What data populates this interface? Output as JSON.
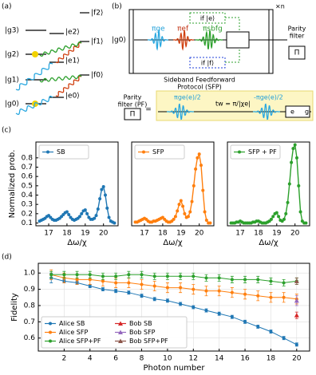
{
  "panel_labels": [
    "(a)",
    "(b)",
    "(c)",
    "(d)"
  ],
  "diagram_a": {
    "levels": [
      "|g3⟩",
      "|e2⟩",
      "|f2⟩",
      "|g2⟩",
      "|e1⟩",
      "|f1⟩",
      "|g1⟩",
      "|f0⟩",
      "|e0⟩",
      "|g0⟩"
    ]
  },
  "diagram_b": {
    "input": "|g0⟩",
    "pulses": [
      "πge",
      "πef",
      "πsbfg"
    ],
    "if_e": "if |e⟩",
    "if_f": "if |f⟩",
    "repeat": "×n",
    "parity_filter": [
      "Parity",
      "filter"
    ],
    "pi": "Π",
    "caption": [
      "Sideband Feedforward",
      "Protocol (SFP)"
    ],
    "pf_label": [
      "Parity",
      "filter (PF)"
    ],
    "pf_pi": "Π",
    "equals": "=",
    "pf_pulse1": "πge(e)/2",
    "wait": "tw = π/|χe|",
    "pf_pulse2": "-πge(e)/2",
    "detector": [
      "e",
      "g"
    ]
  },
  "chart_data": [
    {
      "type": "line",
      "ylabel": "Normalized prob.",
      "xlabel": "Δω/χ",
      "legend": "upper left",
      "x": [
        16.5,
        16.6,
        16.7,
        16.8,
        16.9,
        17.0,
        17.1,
        17.2,
        17.3,
        17.4,
        17.5,
        17.6,
        17.7,
        17.8,
        17.9,
        18.0,
        18.1,
        18.2,
        18.3,
        18.4,
        18.5,
        18.6,
        18.7,
        18.8,
        18.9,
        19.0,
        19.1,
        19.2,
        19.3,
        19.4,
        19.5,
        19.6,
        19.7,
        19.8,
        19.9,
        20.0,
        20.1,
        20.2,
        20.3,
        20.4,
        20.5,
        20.6
      ],
      "series": [
        {
          "name": "SB",
          "color": "#1f77b4",
          "marker": "o",
          "values": [
            0.12,
            0.13,
            0.14,
            0.15,
            0.17,
            0.18,
            0.16,
            0.14,
            0.13,
            0.13,
            0.14,
            0.15,
            0.17,
            0.19,
            0.21,
            0.22,
            0.19,
            0.16,
            0.14,
            0.13,
            0.14,
            0.15,
            0.17,
            0.2,
            0.23,
            0.24,
            0.2,
            0.16,
            0.14,
            0.14,
            0.15,
            0.18,
            0.25,
            0.36,
            0.46,
            0.49,
            0.4,
            0.26,
            0.16,
            0.12,
            0.11,
            0.1
          ]
        }
      ],
      "xlim": [
        16.3,
        20.8
      ],
      "xticks": [
        17,
        18,
        19,
        20
      ],
      "ylim": [
        0.07,
        0.97
      ],
      "yticks": [
        0.1,
        0.2,
        0.3,
        0.4,
        0.5,
        0.6,
        0.7,
        0.8
      ]
    },
    {
      "type": "line",
      "xlabel": "Δω/χ",
      "legend": "upper left",
      "x": [
        16.5,
        16.6,
        16.7,
        16.8,
        16.9,
        17.0,
        17.1,
        17.2,
        17.3,
        17.4,
        17.5,
        17.6,
        17.7,
        17.8,
        17.9,
        18.0,
        18.1,
        18.2,
        18.3,
        18.4,
        18.5,
        18.6,
        18.7,
        18.8,
        18.9,
        19.0,
        19.1,
        19.2,
        19.3,
        19.4,
        19.5,
        19.6,
        19.7,
        19.8,
        19.9,
        20.0,
        20.1,
        20.2,
        20.3,
        20.4,
        20.5,
        20.6
      ],
      "series": [
        {
          "name": "SFP",
          "color": "#ff7f0e",
          "marker": "o",
          "values": [
            0.11,
            0.11,
            0.12,
            0.13,
            0.14,
            0.15,
            0.14,
            0.12,
            0.11,
            0.11,
            0.12,
            0.12,
            0.13,
            0.14,
            0.15,
            0.16,
            0.14,
            0.12,
            0.11,
            0.11,
            0.12,
            0.14,
            0.17,
            0.23,
            0.3,
            0.34,
            0.28,
            0.2,
            0.16,
            0.17,
            0.22,
            0.33,
            0.5,
            0.68,
            0.8,
            0.84,
            0.72,
            0.45,
            0.22,
            0.13,
            0.1,
            0.1
          ]
        }
      ],
      "xlim": [
        16.3,
        20.8
      ],
      "xticks": [
        17,
        18,
        19,
        20
      ],
      "ylim": [
        0.07,
        0.97
      ]
    },
    {
      "type": "line",
      "xlabel": "Δω/χ",
      "legend": "upper left",
      "x": [
        16.5,
        16.6,
        16.7,
        16.8,
        16.9,
        17.0,
        17.1,
        17.2,
        17.3,
        17.4,
        17.5,
        17.6,
        17.7,
        17.8,
        17.9,
        18.0,
        18.1,
        18.2,
        18.3,
        18.4,
        18.5,
        18.6,
        18.7,
        18.8,
        18.9,
        19.0,
        19.1,
        19.2,
        19.3,
        19.4,
        19.5,
        19.6,
        19.7,
        19.8,
        19.9,
        20.0,
        20.1,
        20.2,
        20.3,
        20.4,
        20.5,
        20.6
      ],
      "series": [
        {
          "name": "SFP + PF",
          "color": "#2ca02c",
          "marker": "o",
          "values": [
            0.1,
            0.1,
            0.1,
            0.11,
            0.11,
            0.12,
            0.11,
            0.1,
            0.1,
            0.1,
            0.1,
            0.1,
            0.11,
            0.11,
            0.12,
            0.12,
            0.11,
            0.1,
            0.1,
            0.1,
            0.11,
            0.12,
            0.14,
            0.17,
            0.2,
            0.21,
            0.17,
            0.13,
            0.12,
            0.14,
            0.2,
            0.32,
            0.52,
            0.75,
            0.9,
            0.94,
            0.8,
            0.5,
            0.22,
            0.12,
            0.1,
            0.1
          ]
        }
      ],
      "xlim": [
        16.3,
        20.8
      ],
      "xticks": [
        17,
        18,
        19,
        20
      ],
      "ylim": [
        0.07,
        0.97
      ]
    },
    {
      "type": "errorbar",
      "xlabel": "Photon number",
      "ylabel": "Fidelity",
      "legend": "lower left",
      "legend_columns": 2,
      "grid": true,
      "xlim": [
        0,
        21
      ],
      "xticks": [
        2,
        4,
        6,
        8,
        10,
        12,
        14,
        16,
        18,
        20
      ],
      "ylim": [
        0.52,
        1.06
      ],
      "yticks": [
        0.6,
        0.7,
        0.8,
        0.9,
        {
          "value": 1,
          "label": "1.0"
        }
      ],
      "series": [
        {
          "name": "Alice SB",
          "color": "#1f77b4",
          "marker": "o",
          "x": [
            1,
            2,
            3,
            4,
            5,
            6,
            7,
            8,
            9,
            10,
            11,
            12,
            13,
            14,
            15,
            16,
            17,
            18,
            19,
            20
          ],
          "values": [
            0.97,
            0.95,
            0.94,
            0.92,
            0.9,
            0.89,
            0.88,
            0.86,
            0.84,
            0.83,
            0.81,
            0.79,
            0.77,
            0.75,
            0.73,
            0.7,
            0.67,
            0.64,
            0.6,
            0.56
          ],
          "errors": [
            0.03,
            0.01,
            0.01,
            0.01,
            0.01,
            0.01,
            0.01,
            0.01,
            0.01,
            0.01,
            0.01,
            0.01,
            0.01,
            0.01,
            0.01,
            0.01,
            0.01,
            0.01,
            0.01,
            0.01
          ]
        },
        {
          "name": "Alice SFP",
          "color": "#ff7f0e",
          "marker": "o",
          "x": [
            1,
            2,
            3,
            4,
            5,
            6,
            7,
            8,
            9,
            10,
            11,
            12,
            13,
            14,
            15,
            16,
            17,
            18,
            19,
            20
          ],
          "values": [
            0.99,
            0.97,
            0.96,
            0.96,
            0.95,
            0.94,
            0.94,
            0.93,
            0.92,
            0.91,
            0.91,
            0.9,
            0.89,
            0.89,
            0.88,
            0.87,
            0.86,
            0.85,
            0.85,
            0.84
          ],
          "errors": [
            0.03,
            0.03,
            0.03,
            0.03,
            0.03,
            0.03,
            0.03,
            0.03,
            0.03,
            0.03,
            0.03,
            0.03,
            0.03,
            0.03,
            0.03,
            0.03,
            0.03,
            0.03,
            0.03,
            0.03
          ]
        },
        {
          "name": "Alice SFP+PF",
          "color": "#2ca02c",
          "marker": "o",
          "x": [
            1,
            2,
            3,
            4,
            5,
            6,
            7,
            8,
            9,
            10,
            11,
            12,
            13,
            14,
            15,
            16,
            17,
            18,
            19,
            20
          ],
          "values": [
            0.99,
            0.99,
            0.99,
            0.99,
            0.98,
            0.98,
            0.99,
            0.99,
            0.98,
            0.98,
            0.98,
            0.98,
            0.97,
            0.97,
            0.96,
            0.96,
            0.96,
            0.95,
            0.94,
            0.95
          ],
          "errors": [
            0.02,
            0.02,
            0.02,
            0.02,
            0.02,
            0.02,
            0.02,
            0.02,
            0.02,
            0.02,
            0.02,
            0.02,
            0.02,
            0.02,
            0.02,
            0.02,
            0.02,
            0.02,
            0.02,
            0.02
          ]
        },
        {
          "name": "Bob SB",
          "color": "#d62728",
          "marker": "^",
          "x": [
            20
          ],
          "values": [
            0.74
          ],
          "errors": [
            0.02
          ]
        },
        {
          "name": "Bob SFP",
          "color": "#9467bd",
          "marker": "^",
          "x": [
            20
          ],
          "values": [
            0.83
          ],
          "errors": [
            0.03
          ]
        },
        {
          "name": "Bob SFP+PF",
          "color": "#8c564b",
          "marker": "^",
          "x": [
            20
          ],
          "values": [
            0.95
          ],
          "errors": [
            0.02
          ]
        }
      ]
    }
  ]
}
